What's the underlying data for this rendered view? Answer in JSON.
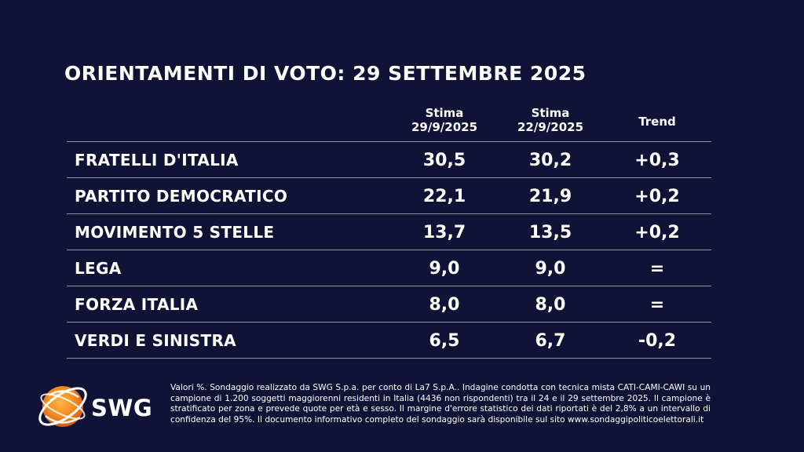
{
  "title": "ORIENTAMENTI DI VOTO: 29 SETTEMBRE 2025",
  "columns": {
    "col1_line1": "Stima",
    "col1_line2": "29/9/2025",
    "col2_line1": "Stima",
    "col2_line2": "22/9/2025",
    "col3": "Trend"
  },
  "rows": [
    {
      "party": "FRATELLI D'ITALIA",
      "current": "30,5",
      "previous": "30,2",
      "trend": "+0,3"
    },
    {
      "party": "PARTITO DEMOCRATICO",
      "current": "22,1",
      "previous": "21,9",
      "trend": "+0,2"
    },
    {
      "party": "MOVIMENTO 5 STELLE",
      "current": "13,7",
      "previous": "13,5",
      "trend": "+0,2"
    },
    {
      "party": "LEGA",
      "current": "9,0",
      "previous": "9,0",
      "trend": "="
    },
    {
      "party": "FORZA ITALIA",
      "current": "8,0",
      "previous": "8,0",
      "trend": "="
    },
    {
      "party": "VERDI E SINISTRA",
      "current": "6,5",
      "previous": "6,7",
      "trend": "-0,2"
    }
  ],
  "logo": {
    "text": "SWG",
    "colors": {
      "orange": "#f28a1e",
      "orange_dark": "#e0641a",
      "ring": "#ffffff"
    }
  },
  "footnote": "Valori %. Sondaggio realizzato da SWG S.p.a. per conto di La7 S.p.A.. Indagine condotta con tecnica mista CATI-CAMI-CAWI su un campione di 1.200 soggetti maggiorenni residenti in Italia (4436 non rispondenti) tra il 24 e il 29 settembre 2025. Il campione è stratificato per zona e prevede quote per età e sesso. Il margine d'errore statistico dei dati riportati è del 2,8% a un intervallo di confidenza del 95%. Il documento informativo completo del sondaggio sarà disponibile sul sito www.sondaggipoliticoelettorali.it",
  "colors": {
    "background": "#111336",
    "text": "#ffffff",
    "divider": "#8f93a6"
  }
}
